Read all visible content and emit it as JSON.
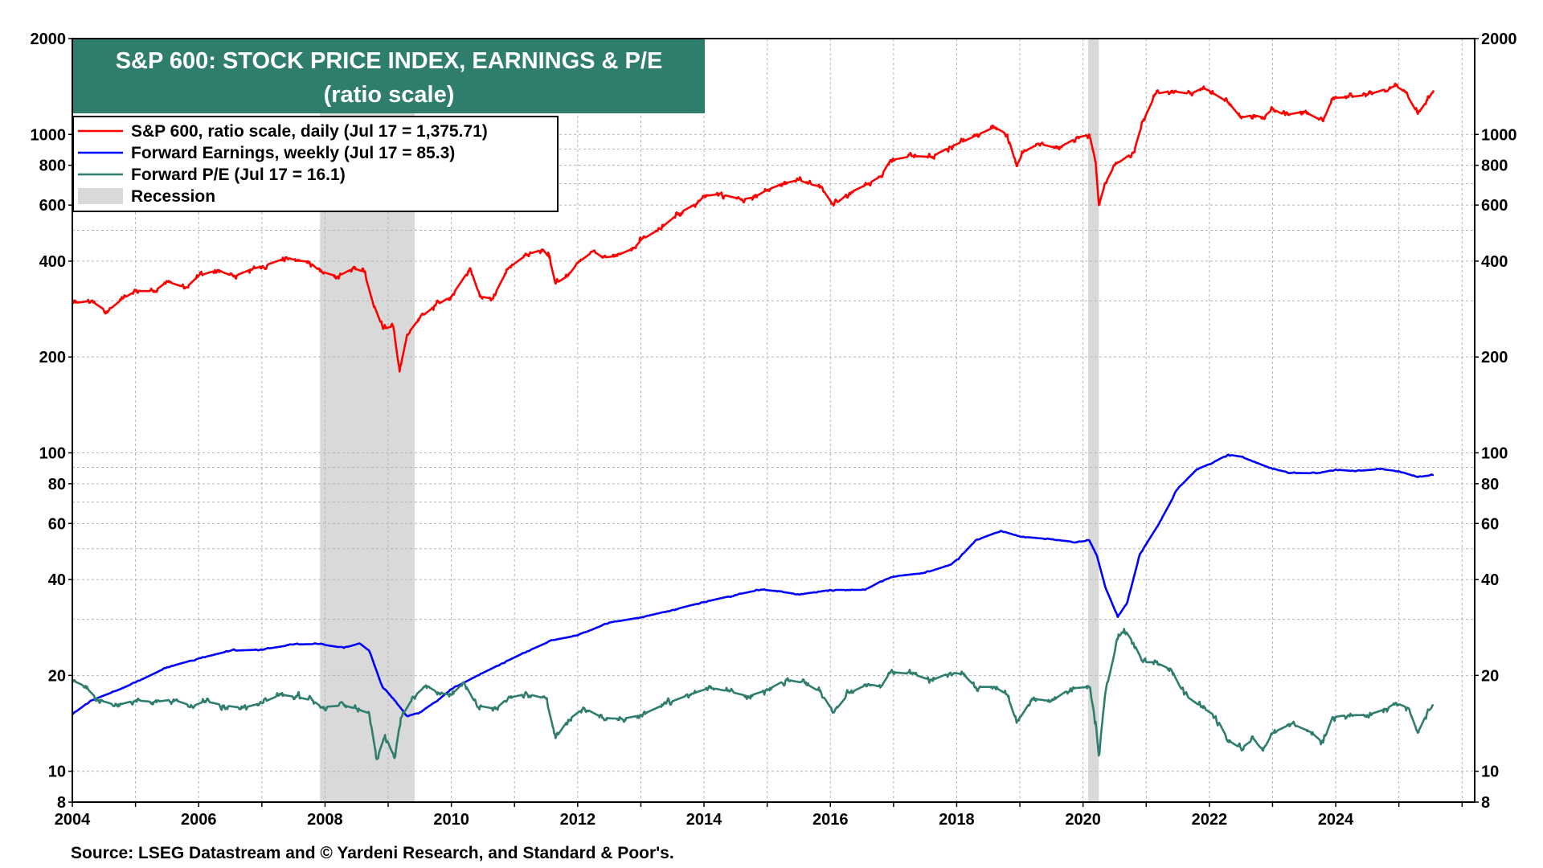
{
  "chart_data": {
    "type": "line",
    "title": "S&P 600: STOCK PRICE INDEX, EARNINGS & P/E",
    "subtitle": "(ratio scale)",
    "source": "Source: LSEG Datastream and © Yardeni Research, and Standard & Poor's.",
    "y_scale": "log",
    "ylim": [
      8,
      2000
    ],
    "xlim": [
      2004.0,
      2026.2
    ],
    "grid": true,
    "legend_position": "top-left",
    "x_ticks": [
      "2004",
      "2006",
      "2008",
      "2010",
      "2012",
      "2014",
      "2016",
      "2018",
      "2020",
      "2022",
      "2024"
    ],
    "y_ticks": [
      "2000",
      "1000",
      "800",
      "600",
      "400",
      "200",
      "100",
      "80",
      "60",
      "40",
      "20",
      "10",
      "8"
    ],
    "recessions": [
      {
        "start": 2007.92,
        "end": 2009.42
      },
      {
        "start": 2020.08,
        "end": 2020.25
      }
    ],
    "legend": [
      {
        "label": "S&P 600, ratio scale, daily (Jul 17 = 1,375.71)",
        "color": "#ff0000",
        "kind": "line"
      },
      {
        "label": "Forward Earnings, weekly (Jul 17 = 85.3)",
        "color": "#0000ff",
        "kind": "line"
      },
      {
        "label": "Forward P/E (Jul 17 = 16.1)",
        "color": "#2e7d6d",
        "kind": "line"
      },
      {
        "label": "Recession",
        "color": "#d9d9d9",
        "kind": "box"
      }
    ],
    "series": [
      {
        "name": "S&P 600, ratio scale, daily (Jul 17 = 1,375.71)",
        "color": "#ff0000",
        "points": [
          [
            2004.0,
            295
          ],
          [
            2004.3,
            300
          ],
          [
            2004.55,
            278
          ],
          [
            2004.8,
            305
          ],
          [
            2005.0,
            322
          ],
          [
            2005.3,
            322
          ],
          [
            2005.5,
            345
          ],
          [
            2005.8,
            330
          ],
          [
            2006.0,
            360
          ],
          [
            2006.3,
            375
          ],
          [
            2006.55,
            358
          ],
          [
            2006.85,
            378
          ],
          [
            2007.0,
            385
          ],
          [
            2007.4,
            410
          ],
          [
            2007.55,
            402
          ],
          [
            2007.75,
            398
          ],
          [
            2007.92,
            372
          ],
          [
            2008.2,
            358
          ],
          [
            2008.45,
            380
          ],
          [
            2008.62,
            370
          ],
          [
            2008.75,
            300
          ],
          [
            2008.92,
            245
          ],
          [
            2009.08,
            250
          ],
          [
            2009.18,
            180
          ],
          [
            2009.3,
            235
          ],
          [
            2009.5,
            265
          ],
          [
            2009.75,
            290
          ],
          [
            2010.0,
            310
          ],
          [
            2010.3,
            380
          ],
          [
            2010.45,
            310
          ],
          [
            2010.65,
            305
          ],
          [
            2010.9,
            380
          ],
          [
            2011.2,
            420
          ],
          [
            2011.45,
            435
          ],
          [
            2011.55,
            410
          ],
          [
            2011.65,
            340
          ],
          [
            2011.85,
            360
          ],
          [
            2012.0,
            395
          ],
          [
            2012.25,
            430
          ],
          [
            2012.4,
            410
          ],
          [
            2012.6,
            415
          ],
          [
            2012.9,
            440
          ],
          [
            2013.0,
            465
          ],
          [
            2013.3,
            505
          ],
          [
            2013.6,
            565
          ],
          [
            2013.9,
            610
          ],
          [
            2014.0,
            640
          ],
          [
            2014.25,
            650
          ],
          [
            2014.6,
            625
          ],
          [
            2014.8,
            635
          ],
          [
            2015.0,
            670
          ],
          [
            2015.25,
            700
          ],
          [
            2015.5,
            720
          ],
          [
            2015.65,
            700
          ],
          [
            2015.85,
            685
          ],
          [
            2016.05,
            598
          ],
          [
            2016.3,
            655
          ],
          [
            2016.6,
            700
          ],
          [
            2016.8,
            740
          ],
          [
            2016.95,
            830
          ],
          [
            2017.3,
            855
          ],
          [
            2017.6,
            850
          ],
          [
            2017.9,
            915
          ],
          [
            2018.1,
            950
          ],
          [
            2018.3,
            990
          ],
          [
            2018.6,
            1055
          ],
          [
            2018.8,
            1000
          ],
          [
            2018.95,
            795
          ],
          [
            2019.05,
            880
          ],
          [
            2019.3,
            935
          ],
          [
            2019.6,
            905
          ],
          [
            2019.9,
            975
          ],
          [
            2020.1,
            1000
          ],
          [
            2020.2,
            820
          ],
          [
            2020.25,
            600
          ],
          [
            2020.35,
            700
          ],
          [
            2020.5,
            800
          ],
          [
            2020.8,
            880
          ],
          [
            2020.95,
            1100
          ],
          [
            2021.15,
            1340
          ],
          [
            2021.4,
            1370
          ],
          [
            2021.7,
            1340
          ],
          [
            2021.9,
            1400
          ],
          [
            2022.0,
            1370
          ],
          [
            2022.3,
            1260
          ],
          [
            2022.5,
            1130
          ],
          [
            2022.7,
            1150
          ],
          [
            2022.85,
            1130
          ],
          [
            2023.0,
            1200
          ],
          [
            2023.2,
            1150
          ],
          [
            2023.5,
            1180
          ],
          [
            2023.8,
            1100
          ],
          [
            2023.95,
            1300
          ],
          [
            2024.2,
            1310
          ],
          [
            2024.5,
            1330
          ],
          [
            2024.85,
            1400
          ],
          [
            2024.95,
            1420
          ],
          [
            2025.1,
            1360
          ],
          [
            2025.3,
            1160
          ],
          [
            2025.45,
            1280
          ],
          [
            2025.55,
            1375
          ]
        ]
      },
      {
        "name": "Forward Earnings, weekly (Jul 17 = 85.3)",
        "color": "#0000ff",
        "points": [
          [
            2004.0,
            15.1
          ],
          [
            2004.3,
            16.7
          ],
          [
            2004.7,
            17.9
          ],
          [
            2005.0,
            19.0
          ],
          [
            2005.5,
            21.2
          ],
          [
            2006.0,
            22.6
          ],
          [
            2006.5,
            23.9
          ],
          [
            2007.0,
            24.1
          ],
          [
            2007.5,
            25.0
          ],
          [
            2007.9,
            25.1
          ],
          [
            2008.3,
            24.4
          ],
          [
            2008.55,
            25.2
          ],
          [
            2008.7,
            23.9
          ],
          [
            2008.9,
            18.6
          ],
          [
            2009.1,
            16.7
          ],
          [
            2009.3,
            14.9
          ],
          [
            2009.5,
            15.3
          ],
          [
            2009.8,
            16.8
          ],
          [
            2010.0,
            18.1
          ],
          [
            2010.4,
            19.9
          ],
          [
            2010.8,
            21.8
          ],
          [
            2011.2,
            23.8
          ],
          [
            2011.6,
            25.8
          ],
          [
            2012.0,
            26.7
          ],
          [
            2012.5,
            29.3
          ],
          [
            2013.0,
            30.4
          ],
          [
            2013.5,
            32.1
          ],
          [
            2014.0,
            34.0
          ],
          [
            2014.5,
            35.8
          ],
          [
            2014.9,
            37.2
          ],
          [
            2015.2,
            36.7
          ],
          [
            2015.5,
            35.9
          ],
          [
            2015.8,
            36.6
          ],
          [
            2016.0,
            37.1
          ],
          [
            2016.3,
            37.1
          ],
          [
            2016.55,
            37.1
          ],
          [
            2016.8,
            39.5
          ],
          [
            2017.0,
            40.9
          ],
          [
            2017.5,
            42.0
          ],
          [
            2017.9,
            44.5
          ],
          [
            2018.05,
            47.0
          ],
          [
            2018.3,
            53.1
          ],
          [
            2018.7,
            56.9
          ],
          [
            2019.0,
            54.6
          ],
          [
            2019.5,
            53.5
          ],
          [
            2019.9,
            52.4
          ],
          [
            2020.1,
            53.1
          ],
          [
            2020.22,
            47.5
          ],
          [
            2020.35,
            38.0
          ],
          [
            2020.55,
            30.5
          ],
          [
            2020.7,
            33.9
          ],
          [
            2020.9,
            48.1
          ],
          [
            2021.2,
            59.8
          ],
          [
            2021.5,
            77.1
          ],
          [
            2021.8,
            88.8
          ],
          [
            2022.0,
            92.1
          ],
          [
            2022.3,
            98.8
          ],
          [
            2022.5,
            97.2
          ],
          [
            2022.7,
            93.9
          ],
          [
            2023.0,
            89.0
          ],
          [
            2023.3,
            86.5
          ],
          [
            2023.7,
            86.2
          ],
          [
            2024.0,
            88.6
          ],
          [
            2024.3,
            87.6
          ],
          [
            2024.7,
            88.9
          ],
          [
            2025.0,
            87.6
          ],
          [
            2025.3,
            83.9
          ],
          [
            2025.55,
            85.3
          ]
        ]
      },
      {
        "name": "Forward P/E (Jul 17 = 16.1)",
        "color": "#2e7d6d",
        "points": [
          [
            2004.0,
            19.3
          ],
          [
            2004.2,
            18.5
          ],
          [
            2004.4,
            16.8
          ],
          [
            2004.7,
            16.1
          ],
          [
            2005.0,
            16.7
          ],
          [
            2005.3,
            16.5
          ],
          [
            2005.6,
            16.8
          ],
          [
            2005.9,
            16.0
          ],
          [
            2006.1,
            16.6
          ],
          [
            2006.4,
            16.1
          ],
          [
            2006.7,
            15.8
          ],
          [
            2007.0,
            16.4
          ],
          [
            2007.3,
            17.4
          ],
          [
            2007.55,
            17.1
          ],
          [
            2007.8,
            16.7
          ],
          [
            2007.95,
            15.9
          ],
          [
            2008.3,
            16.1
          ],
          [
            2008.5,
            15.7
          ],
          [
            2008.7,
            15.2
          ],
          [
            2008.82,
            10.9
          ],
          [
            2008.95,
            13.0
          ],
          [
            2009.1,
            11.0
          ],
          [
            2009.2,
            14.7
          ],
          [
            2009.4,
            17.1
          ],
          [
            2009.6,
            18.6
          ],
          [
            2009.8,
            17.6
          ],
          [
            2010.0,
            17.4
          ],
          [
            2010.2,
            19.0
          ],
          [
            2010.4,
            16.1
          ],
          [
            2010.7,
            15.7
          ],
          [
            2010.9,
            17.0
          ],
          [
            2011.2,
            17.5
          ],
          [
            2011.5,
            16.9
          ],
          [
            2011.65,
            12.7
          ],
          [
            2011.85,
            14.5
          ],
          [
            2012.1,
            15.8
          ],
          [
            2012.4,
            14.7
          ],
          [
            2012.7,
            14.6
          ],
          [
            2013.0,
            15.0
          ],
          [
            2013.4,
            16.3
          ],
          [
            2013.8,
            17.5
          ],
          [
            2014.1,
            18.3
          ],
          [
            2014.4,
            17.8
          ],
          [
            2014.7,
            17.2
          ],
          [
            2015.0,
            18.0
          ],
          [
            2015.3,
            19.4
          ],
          [
            2015.6,
            18.9
          ],
          [
            2015.85,
            17.7
          ],
          [
            2016.05,
            15.3
          ],
          [
            2016.3,
            17.6
          ],
          [
            2016.6,
            18.8
          ],
          [
            2016.8,
            18.4
          ],
          [
            2016.95,
            20.5
          ],
          [
            2017.3,
            20.2
          ],
          [
            2017.6,
            19.3
          ],
          [
            2017.9,
            20.4
          ],
          [
            2018.1,
            20.2
          ],
          [
            2018.3,
            18.4
          ],
          [
            2018.6,
            18.4
          ],
          [
            2018.8,
            17.4
          ],
          [
            2018.95,
            14.2
          ],
          [
            2019.2,
            16.9
          ],
          [
            2019.5,
            16.6
          ],
          [
            2019.8,
            18.2
          ],
          [
            2020.1,
            18.4
          ],
          [
            2020.2,
            14.3
          ],
          [
            2020.25,
            11.2
          ],
          [
            2020.35,
            17.5
          ],
          [
            2020.55,
            26.0
          ],
          [
            2020.65,
            28.0
          ],
          [
            2020.8,
            25.3
          ],
          [
            2020.95,
            22.0
          ],
          [
            2021.15,
            22.0
          ],
          [
            2021.4,
            20.8
          ],
          [
            2021.6,
            17.4
          ],
          [
            2021.9,
            15.8
          ],
          [
            2022.1,
            14.9
          ],
          [
            2022.3,
            12.5
          ],
          [
            2022.5,
            11.8
          ],
          [
            2022.7,
            12.6
          ],
          [
            2022.85,
            11.6
          ],
          [
            2023.0,
            13.2
          ],
          [
            2023.3,
            14.1
          ],
          [
            2023.6,
            13.3
          ],
          [
            2023.8,
            12.3
          ],
          [
            2023.95,
            14.8
          ],
          [
            2024.2,
            15.0
          ],
          [
            2024.5,
            15.0
          ],
          [
            2024.8,
            15.7
          ],
          [
            2024.95,
            16.4
          ],
          [
            2025.15,
            15.8
          ],
          [
            2025.3,
            13.2
          ],
          [
            2025.45,
            15.3
          ],
          [
            2025.55,
            16.1
          ]
        ]
      }
    ]
  }
}
